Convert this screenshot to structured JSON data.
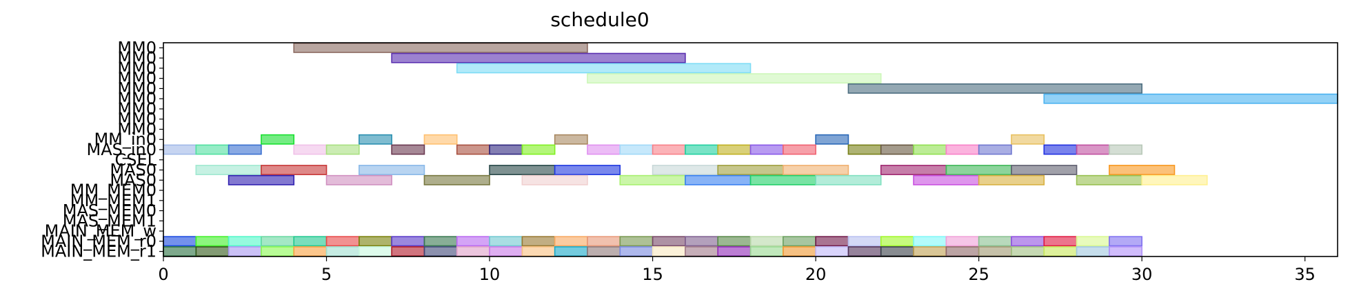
{
  "chart_data": {
    "type": "bar",
    "orientation": "horizontal-gantt",
    "title": "schedule0",
    "xlabel": "",
    "ylabel": "",
    "xlim": [
      0,
      36
    ],
    "xticks": [
      0,
      5,
      10,
      15,
      20,
      25,
      30,
      35
    ],
    "grid": false,
    "rows": [
      "MM0",
      "MM0",
      "MM0",
      "MM0",
      "MM0",
      "MM0",
      "MM0",
      "MM0",
      "MM0",
      "MM_in0",
      "MAS_in0",
      "CSEL",
      "MAS0",
      "MAS0",
      "MM_MEM0",
      "MM_MEM1",
      "MAS_MEM0",
      "MAS_MEM1",
      "MAIN_MEM_w",
      "MAIN_MEM_r0",
      "MAIN_MEM_r1"
    ],
    "tasks": [
      {
        "row": 0,
        "start": 4,
        "end": 13,
        "color": "#8b6a60"
      },
      {
        "row": 1,
        "start": 7,
        "end": 16,
        "color": "#5a2fb0"
      },
      {
        "row": 2,
        "start": 9,
        "end": 18,
        "color": "#7ddcf5"
      },
      {
        "row": 3,
        "start": 13,
        "end": 22,
        "color": "#ccf7b8"
      },
      {
        "row": 4,
        "start": 21,
        "end": 30,
        "color": "#4d6e80"
      },
      {
        "row": 5,
        "start": 27,
        "end": 36,
        "color": "#4ab2f0"
      },
      {
        "row": 9,
        "start": 3,
        "end": 4,
        "color": "#18e030"
      },
      {
        "row": 9,
        "start": 6,
        "end": 7,
        "color": "#2a8fb0"
      },
      {
        "row": 9,
        "start": 8,
        "end": 9,
        "color": "#ffc070"
      },
      {
        "row": 9,
        "start": 12,
        "end": 13,
        "color": "#a88860"
      },
      {
        "row": 9,
        "start": 20,
        "end": 21,
        "color": "#2a68b8"
      },
      {
        "row": 9,
        "start": 26,
        "end": 27,
        "color": "#e8c060"
      },
      {
        "row": 10,
        "start": 0,
        "end": 1,
        "color": "#a0b8e8"
      },
      {
        "row": 10,
        "start": 1,
        "end": 2,
        "color": "#50e0a0"
      },
      {
        "row": 10,
        "start": 2,
        "end": 3,
        "color": "#3a70d0"
      },
      {
        "row": 10,
        "start": 4,
        "end": 5,
        "color": "#f0c0e8"
      },
      {
        "row": 10,
        "start": 5,
        "end": 6,
        "color": "#a8e080"
      },
      {
        "row": 10,
        "start": 7,
        "end": 8,
        "color": "#6a3850"
      },
      {
        "row": 10,
        "start": 9,
        "end": 10,
        "color": "#a85040"
      },
      {
        "row": 10,
        "start": 10,
        "end": 11,
        "color": "#302880"
      },
      {
        "row": 10,
        "start": 11,
        "end": 12,
        "color": "#80f020"
      },
      {
        "row": 10,
        "start": 13,
        "end": 14,
        "color": "#e090f0"
      },
      {
        "row": 10,
        "start": 14,
        "end": 15,
        "color": "#a0d8f8"
      },
      {
        "row": 10,
        "start": 15,
        "end": 16,
        "color": "#f88088"
      },
      {
        "row": 10,
        "start": 16,
        "end": 17,
        "color": "#20d0a0"
      },
      {
        "row": 10,
        "start": 17,
        "end": 18,
        "color": "#c0b020"
      },
      {
        "row": 10,
        "start": 18,
        "end": 19,
        "color": "#8858e8"
      },
      {
        "row": 10,
        "start": 19,
        "end": 20,
        "color": "#f06070"
      },
      {
        "row": 10,
        "start": 21,
        "end": 22,
        "color": "#788018"
      },
      {
        "row": 10,
        "start": 22,
        "end": 23,
        "color": "#685840"
      },
      {
        "row": 10,
        "start": 23,
        "end": 24,
        "color": "#90e050"
      },
      {
        "row": 10,
        "start": 24,
        "end": 25,
        "color": "#f880c8"
      },
      {
        "row": 10,
        "start": 25,
        "end": 26,
        "color": "#7078d0"
      },
      {
        "row": 10,
        "start": 27,
        "end": 28,
        "color": "#2030e0"
      },
      {
        "row": 10,
        "start": 28,
        "end": 29,
        "color": "#c050a0"
      },
      {
        "row": 10,
        "start": 29,
        "end": 30,
        "color": "#b8c8b8"
      },
      {
        "row": 12,
        "start": 1,
        "end": 3,
        "color": "#a0e8d0"
      },
      {
        "row": 12,
        "start": 3,
        "end": 5,
        "color": "#c83838"
      },
      {
        "row": 12,
        "start": 6,
        "end": 8,
        "color": "#88b8e8"
      },
      {
        "row": 12,
        "start": 10,
        "end": 12,
        "color": "#284848"
      },
      {
        "row": 12,
        "start": 12,
        "end": 14,
        "color": "#2038e0"
      },
      {
        "row": 12,
        "start": 15,
        "end": 17,
        "color": "#c8d8d8"
      },
      {
        "row": 12,
        "start": 17,
        "end": 19,
        "color": "#a0a040"
      },
      {
        "row": 12,
        "start": 19,
        "end": 21,
        "color": "#f0b070"
      },
      {
        "row": 12,
        "start": 22,
        "end": 24,
        "color": "#a02870"
      },
      {
        "row": 12,
        "start": 24,
        "end": 26,
        "color": "#40b858"
      },
      {
        "row": 12,
        "start": 26,
        "end": 28,
        "color": "#606070"
      },
      {
        "row": 12,
        "start": 29,
        "end": 31,
        "color": "#f89820"
      },
      {
        "row": 13,
        "start": 2,
        "end": 4,
        "color": "#3020b0"
      },
      {
        "row": 13,
        "start": 5,
        "end": 7,
        "color": "#d090c0"
      },
      {
        "row": 13,
        "start": 8,
        "end": 10,
        "color": "#787840"
      },
      {
        "row": 13,
        "start": 11,
        "end": 13,
        "color": "#f0d0d0"
      },
      {
        "row": 13,
        "start": 14,
        "end": 16,
        "color": "#a8f070"
      },
      {
        "row": 13,
        "start": 16,
        "end": 18,
        "color": "#3880f0"
      },
      {
        "row": 13,
        "start": 18,
        "end": 20,
        "color": "#20d068"
      },
      {
        "row": 13,
        "start": 20,
        "end": 22,
        "color": "#80e0c0"
      },
      {
        "row": 13,
        "start": 23,
        "end": 25,
        "color": "#c850e0"
      },
      {
        "row": 13,
        "start": 25,
        "end": 27,
        "color": "#d8b040"
      },
      {
        "row": 13,
        "start": 28,
        "end": 30,
        "color": "#98c050"
      },
      {
        "row": 13,
        "start": 30,
        "end": 32,
        "color": "#fff090"
      },
      {
        "row": 19,
        "start": 0,
        "end": 1,
        "color": "#1848e0"
      },
      {
        "row": 19,
        "start": 1,
        "end": 2,
        "color": "#40f028"
      },
      {
        "row": 19,
        "start": 2,
        "end": 3,
        "color": "#50f8c8"
      },
      {
        "row": 19,
        "start": 3,
        "end": 4,
        "color": "#68d8a0"
      },
      {
        "row": 19,
        "start": 4,
        "end": 5,
        "color": "#20c890"
      },
      {
        "row": 19,
        "start": 5,
        "end": 6,
        "color": "#e84848"
      },
      {
        "row": 19,
        "start": 6,
        "end": 7,
        "color": "#788008"
      },
      {
        "row": 19,
        "start": 7,
        "end": 8,
        "color": "#5838c8"
      },
      {
        "row": 19,
        "start": 8,
        "end": 9,
        "color": "#387850"
      },
      {
        "row": 19,
        "start": 9,
        "end": 10,
        "color": "#b868f0"
      },
      {
        "row": 19,
        "start": 10,
        "end": 11,
        "color": "#70c8d0"
      },
      {
        "row": 19,
        "start": 11,
        "end": 12,
        "color": "#987830"
      },
      {
        "row": 19,
        "start": 12,
        "end": 13,
        "color": "#f8a860"
      },
      {
        "row": 19,
        "start": 13,
        "end": 14,
        "color": "#e89878"
      },
      {
        "row": 19,
        "start": 14,
        "end": 15,
        "color": "#789850"
      },
      {
        "row": 19,
        "start": 15,
        "end": 16,
        "color": "#784868"
      },
      {
        "row": 19,
        "start": 16,
        "end": 17,
        "color": "#806090"
      },
      {
        "row": 19,
        "start": 17,
        "end": 18,
        "color": "#588848"
      },
      {
        "row": 19,
        "start": 18,
        "end": 19,
        "color": "#b8d8a8"
      },
      {
        "row": 19,
        "start": 19,
        "end": 20,
        "color": "#6ca060"
      },
      {
        "row": 19,
        "start": 20,
        "end": 21,
        "color": "#701848"
      },
      {
        "row": 19,
        "start": 21,
        "end": 22,
        "color": "#b8c0f0"
      },
      {
        "row": 19,
        "start": 22,
        "end": 23,
        "color": "#a0f828"
      },
      {
        "row": 19,
        "start": 23,
        "end": 24,
        "color": "#80f8f8"
      },
      {
        "row": 19,
        "start": 24,
        "end": 25,
        "color": "#f0a0d8"
      },
      {
        "row": 19,
        "start": 25,
        "end": 26,
        "color": "#88c090"
      },
      {
        "row": 19,
        "start": 26,
        "end": 27,
        "color": "#9050e0"
      },
      {
        "row": 19,
        "start": 27,
        "end": 28,
        "color": "#e01840"
      },
      {
        "row": 19,
        "start": 28,
        "end": 29,
        "color": "#d8f890"
      },
      {
        "row": 19,
        "start": 29,
        "end": 30,
        "color": "#8070f0"
      },
      {
        "row": 20,
        "start": 0,
        "end": 1,
        "color": "#287040"
      },
      {
        "row": 20,
        "start": 1,
        "end": 2,
        "color": "#305818"
      },
      {
        "row": 20,
        "start": 2,
        "end": 3,
        "color": "#a898f0"
      },
      {
        "row": 20,
        "start": 3,
        "end": 4,
        "color": "#88f850"
      },
      {
        "row": 20,
        "start": 4,
        "end": 5,
        "color": "#f8a040"
      },
      {
        "row": 20,
        "start": 5,
        "end": 6,
        "color": "#a0e0d0"
      },
      {
        "row": 20,
        "start": 6,
        "end": 7,
        "color": "#c8f8e0"
      },
      {
        "row": 20,
        "start": 7,
        "end": 8,
        "color": "#b01828"
      },
      {
        "row": 20,
        "start": 8,
        "end": 9,
        "color": "#404878"
      },
      {
        "row": 20,
        "start": 9,
        "end": 10,
        "color": "#e0a0c8"
      },
      {
        "row": 20,
        "start": 10,
        "end": 11,
        "color": "#c878e8"
      },
      {
        "row": 20,
        "start": 11,
        "end": 12,
        "color": "#f8c080"
      },
      {
        "row": 20,
        "start": 12,
        "end": 13,
        "color": "#18a8c8"
      },
      {
        "row": 20,
        "start": 13,
        "end": 14,
        "color": "#907878"
      },
      {
        "row": 20,
        "start": 14,
        "end": 15,
        "color": "#7888e0"
      },
      {
        "row": 20,
        "start": 15,
        "end": 16,
        "color": "#f8e8c0"
      },
      {
        "row": 20,
        "start": 16,
        "end": 17,
        "color": "#a07888"
      },
      {
        "row": 20,
        "start": 17,
        "end": 18,
        "color": "#9028b8"
      },
      {
        "row": 20,
        "start": 18,
        "end": 19,
        "color": "#98d890"
      },
      {
        "row": 20,
        "start": 19,
        "end": 20,
        "color": "#f09830"
      },
      {
        "row": 20,
        "start": 20,
        "end": 21,
        "color": "#c0b8f8"
      },
      {
        "row": 20,
        "start": 21,
        "end": 22,
        "color": "#503058"
      },
      {
        "row": 20,
        "start": 22,
        "end": 23,
        "color": "#384048"
      },
      {
        "row": 20,
        "start": 23,
        "end": 24,
        "color": "#c0a050"
      },
      {
        "row": 20,
        "start": 24,
        "end": 25,
        "color": "#906868"
      },
      {
        "row": 20,
        "start": 25,
        "end": 26,
        "color": "#a09870"
      },
      {
        "row": 20,
        "start": 26,
        "end": 27,
        "color": "#a0c080"
      },
      {
        "row": 20,
        "start": 27,
        "end": 28,
        "color": "#c8e858"
      },
      {
        "row": 20,
        "start": 28,
        "end": 29,
        "color": "#a0c8e0"
      },
      {
        "row": 20,
        "start": 29,
        "end": 30,
        "color": "#b090f8"
      }
    ]
  }
}
